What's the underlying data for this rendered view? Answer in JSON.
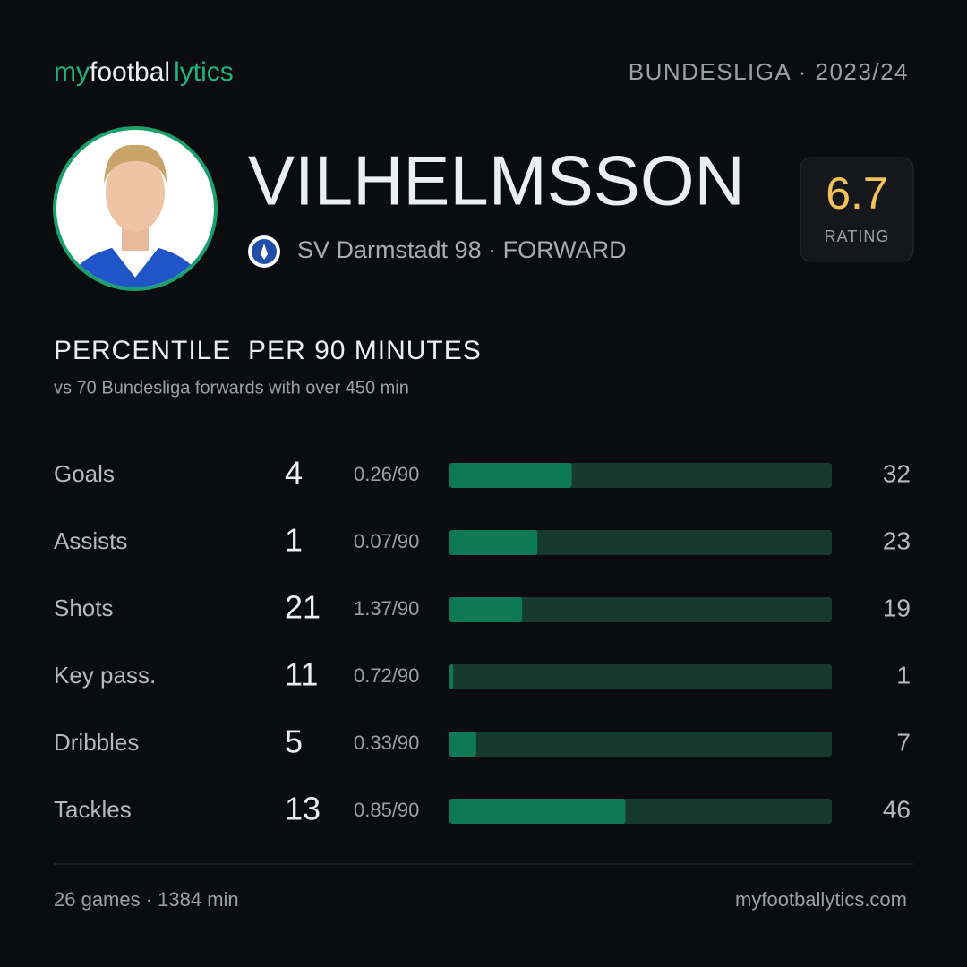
{
  "brand": {
    "parts": [
      "my",
      "footbal",
      "lytics"
    ]
  },
  "league": "BUNDESLIGA · 2023/24",
  "player": {
    "name": "VILHELMSSON",
    "club_line": "SV Darmstadt 98 · FORWARD",
    "rating": 6.7,
    "rating_label": "RATING"
  },
  "section": {
    "title": "PERCENTILE  PER 90 MINUTES",
    "subtitle": "vs 70 Bundesliga forwards with over 450 min",
    "scale": [
      0,
      100
    ],
    "rows": [
      {
        "label": "Goals",
        "total": 4,
        "per90": "0.26/90",
        "percentile": 32
      },
      {
        "label": "Assists",
        "total": 1,
        "per90": "0.07/90",
        "percentile": 23
      },
      {
        "label": "Shots",
        "total": 21,
        "per90": "1.37/90",
        "percentile": 19
      },
      {
        "label": "Key pass.",
        "total": 11,
        "per90": "0.72/90",
        "percentile": 1
      },
      {
        "label": "Dribbles",
        "total": 5,
        "per90": "0.33/90",
        "percentile": 7
      },
      {
        "label": "Tackles",
        "total": 13,
        "per90": "0.85/90",
        "percentile": 46
      }
    ]
  },
  "footer": {
    "left": "26 games · 1384 min",
    "right": "myfootballytics.com"
  }
}
